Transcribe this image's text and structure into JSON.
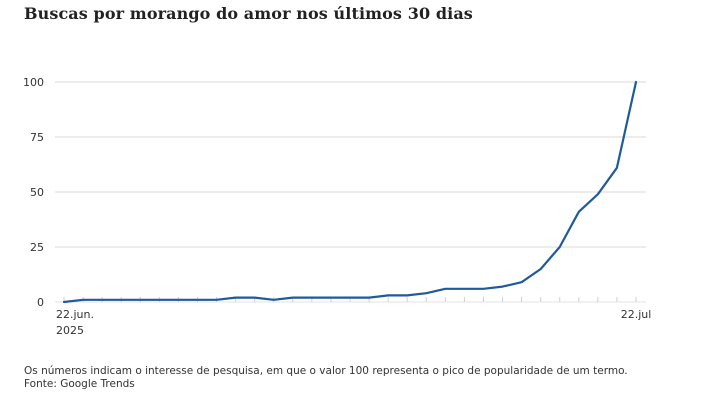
{
  "chart_data": {
    "type": "line",
    "title": "Buscas por morango do amor nos últimos 30 dias",
    "x": [
      "2025-06-22",
      "2025-06-23",
      "2025-06-24",
      "2025-06-25",
      "2025-06-26",
      "2025-06-27",
      "2025-06-28",
      "2025-06-29",
      "2025-06-30",
      "2025-07-01",
      "2025-07-02",
      "2025-07-03",
      "2025-07-04",
      "2025-07-05",
      "2025-07-06",
      "2025-07-07",
      "2025-07-08",
      "2025-07-09",
      "2025-07-10",
      "2025-07-11",
      "2025-07-12",
      "2025-07-13",
      "2025-07-14",
      "2025-07-15",
      "2025-07-16",
      "2025-07-17",
      "2025-07-18",
      "2025-07-19",
      "2025-07-20",
      "2025-07-21",
      "2025-07-22"
    ],
    "series": [
      {
        "values": [
          0,
          1,
          1,
          1,
          1,
          1,
          1,
          1,
          1,
          2,
          2,
          1,
          2,
          2,
          2,
          2,
          2,
          3,
          3,
          4,
          6,
          6,
          6,
          7,
          9,
          15,
          25,
          41,
          49,
          61,
          100
        ],
        "color": "#1f5a9c"
      }
    ],
    "x_tick_labels": [
      {
        "index": 0,
        "lines": [
          "22.jun.",
          "2025"
        ]
      },
      {
        "index": 30,
        "lines": [
          "22.jul"
        ]
      }
    ],
    "y_ticks": [
      0,
      25,
      50,
      75,
      100
    ],
    "ylim": [
      0,
      100
    ],
    "grid": true
  },
  "footer": {
    "note": "Os números indicam o interesse de pesquisa, em que o valor 100 representa o pico de popularidade de um termo.",
    "source": "Fonte: Google Trends"
  }
}
